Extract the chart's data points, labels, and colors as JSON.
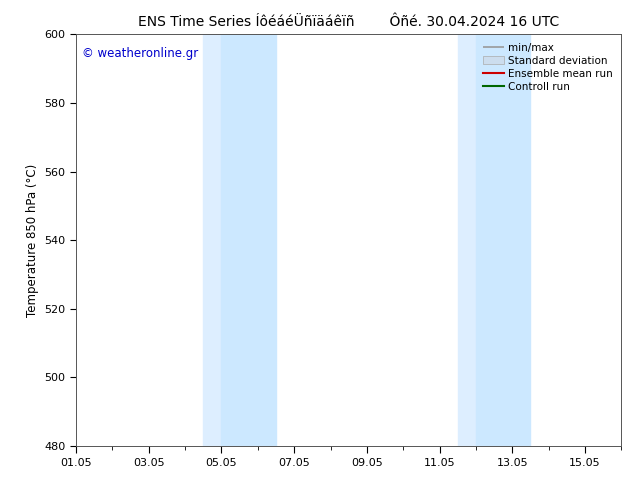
{
  "title_left": "ENS Time Series ÍôéáéÜñïäáêïñ",
  "title_right": "Ôñé. 30.04.2024 16 UTC",
  "ylabel": "Temperature 850 hPa (°C)",
  "watermark": "© weatheronline.gr",
  "watermark_color": "#0000cc",
  "ylim": [
    480,
    600
  ],
  "yticks": [
    480,
    500,
    520,
    540,
    560,
    580,
    600
  ],
  "xtick_labels": [
    "01.05",
    "03.05",
    "05.05",
    "07.05",
    "09.05",
    "11.05",
    "13.05",
    "15.05"
  ],
  "xtick_positions": [
    0,
    2,
    4,
    6,
    8,
    10,
    12,
    14
  ],
  "xlim": [
    0,
    15
  ],
  "shaded_bands": [
    {
      "x_start": 3.5,
      "x_end": 4.0,
      "color": "#ddeeff"
    },
    {
      "x_start": 4.0,
      "x_end": 5.5,
      "color": "#cce8ff"
    },
    {
      "x_start": 10.5,
      "x_end": 11.0,
      "color": "#ddeeff"
    },
    {
      "x_start": 11.0,
      "x_end": 12.5,
      "color": "#cce8ff"
    }
  ],
  "legend_items": [
    {
      "label": "min/max",
      "color": "#aaaaaa",
      "type": "errorbar"
    },
    {
      "label": "Standard deviation",
      "color": "#ccddee",
      "type": "bar"
    },
    {
      "label": "Ensemble mean run",
      "color": "#cc0000",
      "type": "line"
    },
    {
      "label": "Controll run",
      "color": "#006600",
      "type": "line"
    }
  ],
  "bg_color": "#ffffff",
  "plot_bg_color": "#ffffff",
  "spine_color": "#555555",
  "title_fontsize": 10,
  "label_fontsize": 8.5,
  "tick_fontsize": 8
}
